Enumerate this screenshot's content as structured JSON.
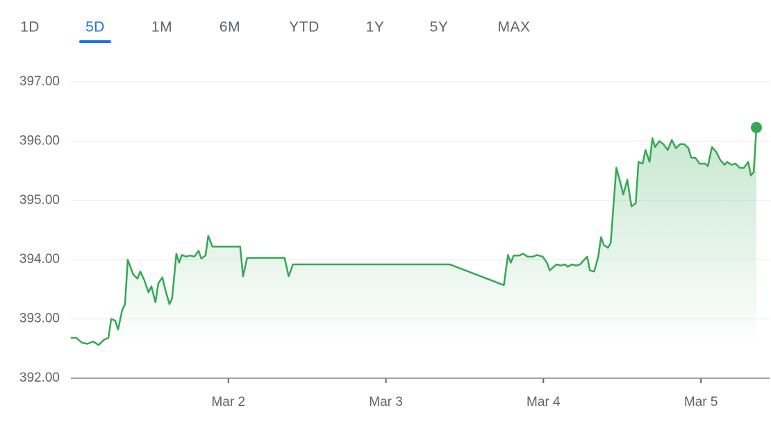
{
  "tabs": [
    "1D",
    "5D",
    "1M",
    "6M",
    "YTD",
    "1Y",
    "5Y",
    "MAX"
  ],
  "active_tab_index": 1,
  "chart_data": {
    "type": "line",
    "color": "#34a853",
    "x": [
      1.0,
      1.035,
      1.07,
      1.106,
      1.141,
      1.176,
      1.211,
      1.238,
      1.256,
      1.282,
      1.3,
      1.326,
      1.344,
      1.361,
      1.396,
      1.423,
      1.441,
      1.467,
      1.493,
      1.511,
      1.537,
      1.555,
      1.581,
      1.599,
      1.626,
      1.643,
      1.67,
      1.687,
      1.705,
      1.731,
      1.758,
      1.784,
      1.811,
      1.828,
      1.855,
      1.872,
      1.899,
      2.075,
      2.093,
      2.119,
      2.357,
      2.383,
      2.41,
      3.405,
      3.749,
      3.775,
      3.793,
      3.811,
      3.846,
      3.872,
      3.899,
      3.934,
      3.96,
      3.996,
      4.022,
      4.04,
      4.066,
      4.084,
      4.11,
      4.137,
      4.154,
      4.181,
      4.207,
      4.233,
      4.26,
      4.278,
      4.295,
      4.322,
      4.348,
      4.366,
      4.383,
      4.41,
      4.427,
      4.463,
      4.489,
      4.507,
      4.533,
      4.559,
      4.586,
      4.604,
      4.63,
      4.648,
      4.674,
      4.692,
      4.709,
      4.736,
      4.762,
      4.789,
      4.815,
      4.841,
      4.868,
      4.894,
      4.921,
      4.938,
      4.965,
      4.991,
      5.026,
      5.044,
      5.07,
      5.097,
      5.123,
      5.15,
      5.167,
      5.194,
      5.22,
      5.247,
      5.273,
      5.3,
      5.317,
      5.335,
      5.352
    ],
    "values": [
      392.68,
      392.68,
      392.6,
      392.58,
      392.62,
      392.56,
      392.65,
      392.68,
      393.0,
      392.97,
      392.82,
      393.15,
      393.25,
      394.0,
      393.75,
      393.68,
      393.8,
      393.65,
      393.45,
      393.55,
      393.28,
      393.6,
      393.7,
      393.5,
      393.25,
      393.35,
      394.1,
      393.95,
      394.08,
      394.05,
      394.07,
      394.05,
      394.15,
      394.02,
      394.07,
      394.4,
      394.22,
      394.22,
      393.72,
      394.03,
      394.03,
      393.72,
      393.92,
      393.92,
      393.57,
      394.08,
      393.95,
      394.07,
      394.07,
      394.1,
      394.05,
      394.05,
      394.08,
      394.05,
      393.95,
      393.82,
      393.88,
      393.92,
      393.9,
      393.92,
      393.88,
      393.92,
      393.9,
      393.92,
      394.0,
      394.05,
      393.82,
      393.8,
      394.05,
      394.38,
      394.25,
      394.2,
      394.28,
      395.55,
      395.3,
      395.1,
      395.35,
      394.9,
      394.95,
      395.65,
      395.62,
      395.85,
      395.65,
      396.05,
      395.9,
      396.0,
      395.95,
      395.85,
      396.02,
      395.88,
      395.95,
      395.95,
      395.88,
      395.72,
      395.72,
      395.62,
      395.62,
      395.58,
      395.9,
      395.82,
      395.68,
      395.6,
      395.65,
      395.6,
      395.62,
      395.55,
      395.55,
      395.65,
      395.42,
      395.48,
      396.23
    ],
    "xlim": [
      1.0,
      5.436
    ],
    "xticks": [
      {
        "value": 2,
        "label": "Mar 2"
      },
      {
        "value": 3,
        "label": "Mar 3"
      },
      {
        "value": 4,
        "label": "Mar 4"
      },
      {
        "value": 5,
        "label": "Mar 5"
      }
    ],
    "ylim": [
      392,
      397
    ],
    "yticks": [
      {
        "value": 392,
        "label": "392.00"
      },
      {
        "value": 393,
        "label": "393.00"
      },
      {
        "value": 394,
        "label": "394.00"
      },
      {
        "value": 395,
        "label": "395.00"
      },
      {
        "value": 396,
        "label": "396.00"
      },
      {
        "value": 397,
        "label": "397.00"
      }
    ],
    "grid": true
  }
}
